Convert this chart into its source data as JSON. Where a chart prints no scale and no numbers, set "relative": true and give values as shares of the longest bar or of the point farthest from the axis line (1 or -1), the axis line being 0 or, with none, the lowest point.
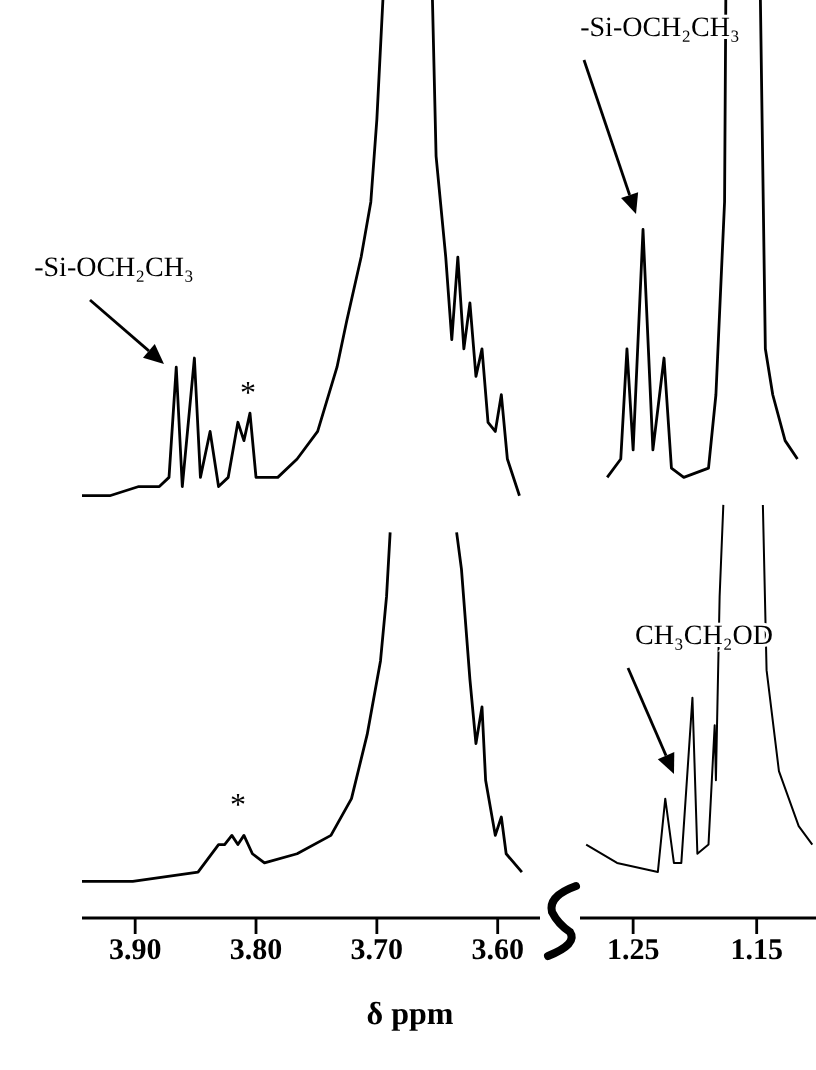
{
  "chart_data": [
    {
      "type": "line",
      "relative": true,
      "xlabel": "δ ppm",
      "xlim": [
        3.944,
        3.565
      ],
      "xticks": [
        {
          "value": 3.9,
          "label": "3.90"
        },
        {
          "value": 3.8,
          "label": "3.80"
        },
        {
          "value": 3.7,
          "label": "3.70"
        },
        {
          "value": 3.6,
          "label": "3.60"
        }
      ],
      "series": [
        {
          "color": "#000000",
          "x": [
            3.944,
            3.921,
            3.897,
            3.88,
            3.872,
            3.866,
            3.861,
            3.851,
            3.846,
            3.838,
            3.831,
            3.823,
            3.815,
            3.81,
            3.805,
            3.8,
            3.782,
            3.766,
            3.749,
            3.733,
            3.725,
            3.713,
            3.705,
            3.7,
            3.695,
            3.675,
            3.654,
            3.651,
            3.643,
            3.638,
            3.633,
            3.628,
            3.623,
            3.618,
            3.613,
            3.608,
            3.602,
            3.597,
            3.592,
            3.582
          ],
          "values": [
            0.46,
            0.46,
            0.47,
            0.47,
            0.48,
            0.6,
            0.47,
            0.61,
            0.48,
            0.53,
            0.47,
            0.48,
            0.54,
            0.52,
            0.55,
            0.48,
            0.48,
            0.5,
            0.53,
            0.6,
            0.65,
            0.72,
            0.78,
            0.87,
            1,
            null,
            1,
            0.83,
            0.72,
            0.63,
            0.72,
            0.62,
            0.67,
            0.59,
            0.62,
            0.54,
            0.53,
            0.57,
            0.5,
            0.46
          ]
        },
        {
          "color": "#000000",
          "x": [
            3.944,
            3.902,
            3.848,
            3.831,
            3.826,
            3.82,
            3.815,
            3.81,
            3.803,
            3.793,
            3.766,
            3.738,
            3.721,
            3.708,
            3.697,
            3.692,
            3.689,
            3.66,
            3.634,
            3.63,
            3.623,
            3.618,
            3.613,
            3.61,
            3.602,
            3.597,
            3.593,
            3.58
          ],
          "values": [
            0.04,
            0.04,
            0.05,
            0.08,
            0.08,
            0.09,
            0.08,
            0.09,
            0.07,
            0.06,
            0.07,
            0.09,
            0.13,
            0.2,
            0.28,
            0.35,
            0.42,
            null,
            0.42,
            0.38,
            0.26,
            0.19,
            0.23,
            0.15,
            0.09,
            0.11,
            0.07,
            0.05
          ]
        }
      ],
      "annotations": [
        "-Si-OCH₂CH₃",
        "*",
        "*"
      ]
    },
    {
      "type": "line",
      "relative": true,
      "xlim": [
        1.293,
        1.102
      ],
      "xticks": [
        {
          "value": 1.25,
          "label": "1.25"
        },
        {
          "value": 1.15,
          "label": "1.15"
        }
      ],
      "series": [
        {
          "color": "#000000",
          "x": [
            1.271,
            1.26,
            1.255,
            1.25,
            1.242,
            1.234,
            1.225,
            1.219,
            1.209,
            1.189,
            1.183,
            1.176,
            1.175,
            1.161,
            1.147,
            1.143,
            1.137,
            1.127,
            1.117
          ],
          "values": [
            0.48,
            0.5,
            0.62,
            0.51,
            0.75,
            0.51,
            0.61,
            0.49,
            0.48,
            0.49,
            0.57,
            0.78,
            1,
            null,
            1,
            0.62,
            0.57,
            0.52,
            0.5
          ]
        },
        {
          "color": "#000000",
          "x": [
            1.288,
            1.263,
            1.23,
            1.224,
            1.217,
            1.211,
            1.202,
            1.198,
            1.189,
            1.184,
            1.183,
            1.18,
            1.177,
            1.161,
            1.145,
            1.142,
            1.132,
            1.116,
            1.105
          ],
          "values": [
            0.08,
            0.06,
            0.05,
            0.13,
            0.06,
            0.06,
            0.24,
            0.07,
            0.08,
            0.21,
            0.15,
            0.35,
            0.45,
            null,
            0.45,
            0.27,
            0.16,
            0.1,
            0.08
          ]
        }
      ],
      "annotations": [
        "-Si-OCH₂CH₃",
        "CH₃CH₂OD"
      ]
    }
  ]
}
